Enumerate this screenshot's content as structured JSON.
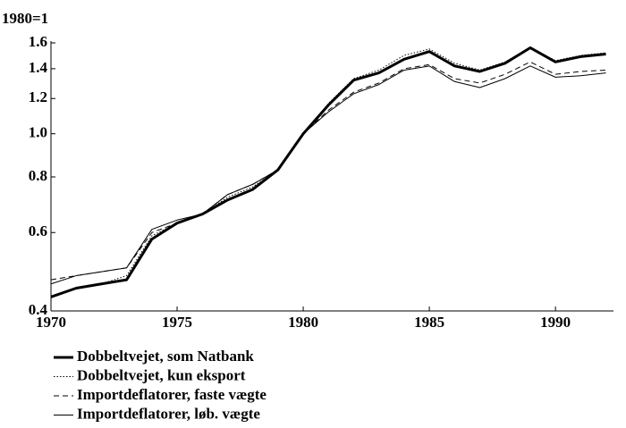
{
  "chart_data": {
    "type": "line",
    "y_label": "1980=1",
    "x": [
      1970,
      1971,
      1972,
      1973,
      1974,
      1975,
      1976,
      1977,
      1978,
      1979,
      1980,
      1981,
      1982,
      1983,
      1984,
      1985,
      1986,
      1987,
      1988,
      1989,
      1990,
      1991,
      1992
    ],
    "xlim": [
      1970,
      1992.3
    ],
    "xticks": [
      1970,
      1975,
      1980,
      1985,
      1990
    ],
    "ylim": [
      0.4,
      1.6
    ],
    "log_y": true,
    "grid": false,
    "yticks": [
      0.4,
      0.6,
      0.8,
      {
        "value": 1,
        "label": "1.0"
      },
      1.2,
      1.4,
      1.6
    ],
    "legend": "bottom-left",
    "series": [
      {
        "name": "Dobbeltvejet, som Natbank",
        "color": "#000000",
        "style": "thick",
        "values": [
          0.43,
          0.45,
          0.46,
          0.47,
          0.58,
          0.63,
          0.66,
          0.71,
          0.75,
          0.83,
          1.0,
          1.16,
          1.32,
          1.37,
          1.47,
          1.53,
          1.42,
          1.38,
          1.44,
          1.56,
          1.45,
          1.49,
          1.51
        ]
      },
      {
        "name": "Dobbeltvejet, kun eksport",
        "color": "#000000",
        "style": "dotted",
        "values": [
          0.43,
          0.45,
          0.46,
          0.48,
          0.59,
          0.63,
          0.66,
          0.72,
          0.76,
          0.83,
          1.0,
          1.17,
          1.33,
          1.39,
          1.5,
          1.55,
          1.44,
          1.39,
          1.45,
          1.56,
          1.46,
          1.5,
          1.52
        ]
      },
      {
        "name": "Importdeflatorer, faste vægte",
        "color": "#000000",
        "style": "dashed",
        "values": [
          0.47,
          0.48,
          0.49,
          0.5,
          0.6,
          0.63,
          0.66,
          0.73,
          0.77,
          0.83,
          1.0,
          1.13,
          1.24,
          1.3,
          1.4,
          1.43,
          1.33,
          1.3,
          1.36,
          1.45,
          1.36,
          1.38,
          1.39
        ]
      },
      {
        "name": "Importdeflatorer, løb. vægte",
        "color": "#000000",
        "style": "solid",
        "values": [
          0.46,
          0.48,
          0.49,
          0.5,
          0.61,
          0.64,
          0.66,
          0.73,
          0.77,
          0.83,
          1.0,
          1.12,
          1.23,
          1.29,
          1.39,
          1.42,
          1.31,
          1.27,
          1.33,
          1.42,
          1.34,
          1.35,
          1.37
        ]
      }
    ]
  }
}
